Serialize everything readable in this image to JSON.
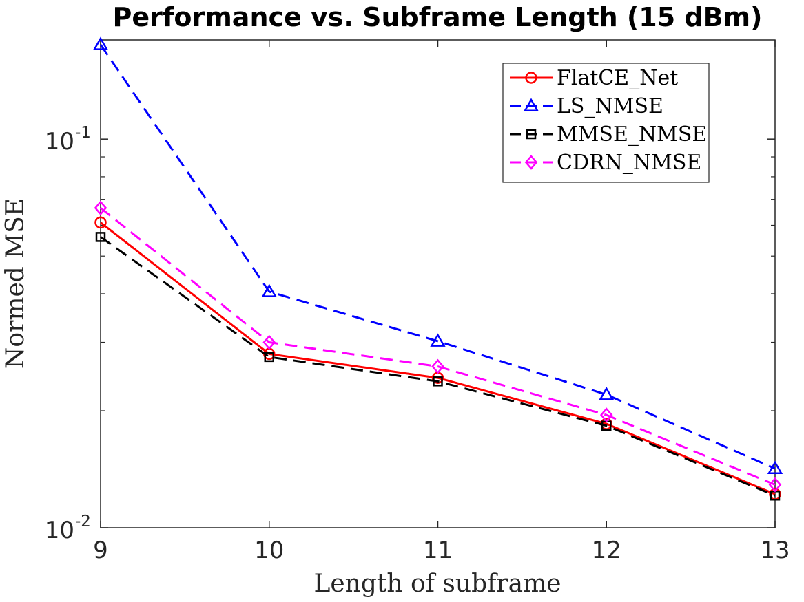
{
  "chart_data": {
    "type": "line",
    "title": "Performance vs. Subframe Length (15 dBm)",
    "xlabel": "Length of subframe",
    "ylabel": "Normed MSE",
    "x": [
      9,
      10,
      11,
      12,
      13
    ],
    "x_ticks": [
      "9",
      "10",
      "11",
      "12",
      "13"
    ],
    "xlim": [
      9,
      13
    ],
    "ylim": [
      0.01,
      0.18
    ],
    "yscale": "log",
    "y_ticks": [
      {
        "value": 0.1,
        "base": "10",
        "exp": "-1"
      },
      {
        "value": 0.01,
        "base": "10",
        "exp": "-2"
      }
    ],
    "grid": false,
    "legend": "top-right",
    "series": [
      {
        "name": "FlatCE_Net",
        "values": [
          0.061,
          0.028,
          0.0243,
          0.0185,
          0.0122
        ],
        "color": "#ff0000",
        "dash": "solid",
        "marker": "circle"
      },
      {
        "name": "LS_NMSE",
        "values": [
          0.175,
          0.0405,
          0.0302,
          0.022,
          0.0142
        ],
        "color": "#0000ff",
        "dash": "dashed",
        "marker": "triangle"
      },
      {
        "name": "MMSE_NMSE",
        "values": [
          0.056,
          0.0275,
          0.0238,
          0.0183,
          0.0121
        ],
        "color": "#000000",
        "dash": "dashed",
        "marker": "square"
      },
      {
        "name": "CDRN_NMSE",
        "values": [
          0.0665,
          0.03,
          0.026,
          0.0195,
          0.0129
        ],
        "color": "#ff00ff",
        "dash": "dashed",
        "marker": "diamond"
      }
    ]
  }
}
